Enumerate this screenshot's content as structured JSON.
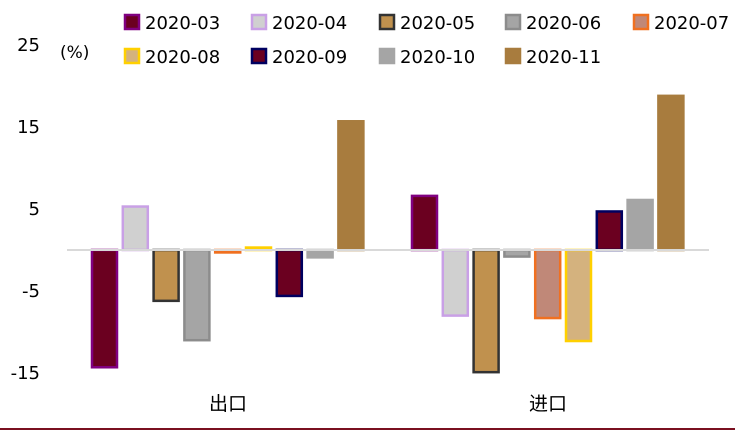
{
  "chart_data": {
    "type": "bar",
    "unit_label": "(%)",
    "categories": [
      "出口",
      "进口"
    ],
    "yticks": [
      25,
      15,
      5,
      -5,
      -15
    ],
    "ylim": [
      -15,
      25
    ],
    "grid": false,
    "legend_position": "top",
    "series": [
      {
        "name": "2020-03",
        "fill": "#6B0020",
        "stroke": "#800080",
        "values": [
          -14.3,
          6.6
        ]
      },
      {
        "name": "2020-04",
        "fill": "#D0D0D0",
        "stroke": "#C9A0E6",
        "values": [
          5.3,
          -8.0
        ]
      },
      {
        "name": "2020-05",
        "fill": "#C0914E",
        "stroke": "#333333",
        "values": [
          -6.2,
          -14.9
        ]
      },
      {
        "name": "2020-06",
        "fill": "#A5A5A5",
        "stroke": "#8C8C8C",
        "values": [
          -11.0,
          -0.8
        ]
      },
      {
        "name": "2020-07",
        "fill": "#C08878",
        "stroke": "#F07020",
        "values": [
          -0.3,
          -8.3
        ]
      },
      {
        "name": "2020-08",
        "fill": "#D4B27E",
        "stroke": "#FFD000",
        "values": [
          0.3,
          -11.1
        ]
      },
      {
        "name": "2020-09",
        "fill": "#6B0020",
        "stroke": "#000060",
        "values": [
          -5.6,
          4.7
        ]
      },
      {
        "name": "2020-10",
        "fill": "#A5A5A5",
        "stroke": "#A5A5A5",
        "values": [
          -0.9,
          6.1
        ]
      },
      {
        "name": "2020-11",
        "fill": "#A87C3E",
        "stroke": "#A87C3E",
        "values": [
          15.7,
          18.8
        ]
      }
    ]
  }
}
